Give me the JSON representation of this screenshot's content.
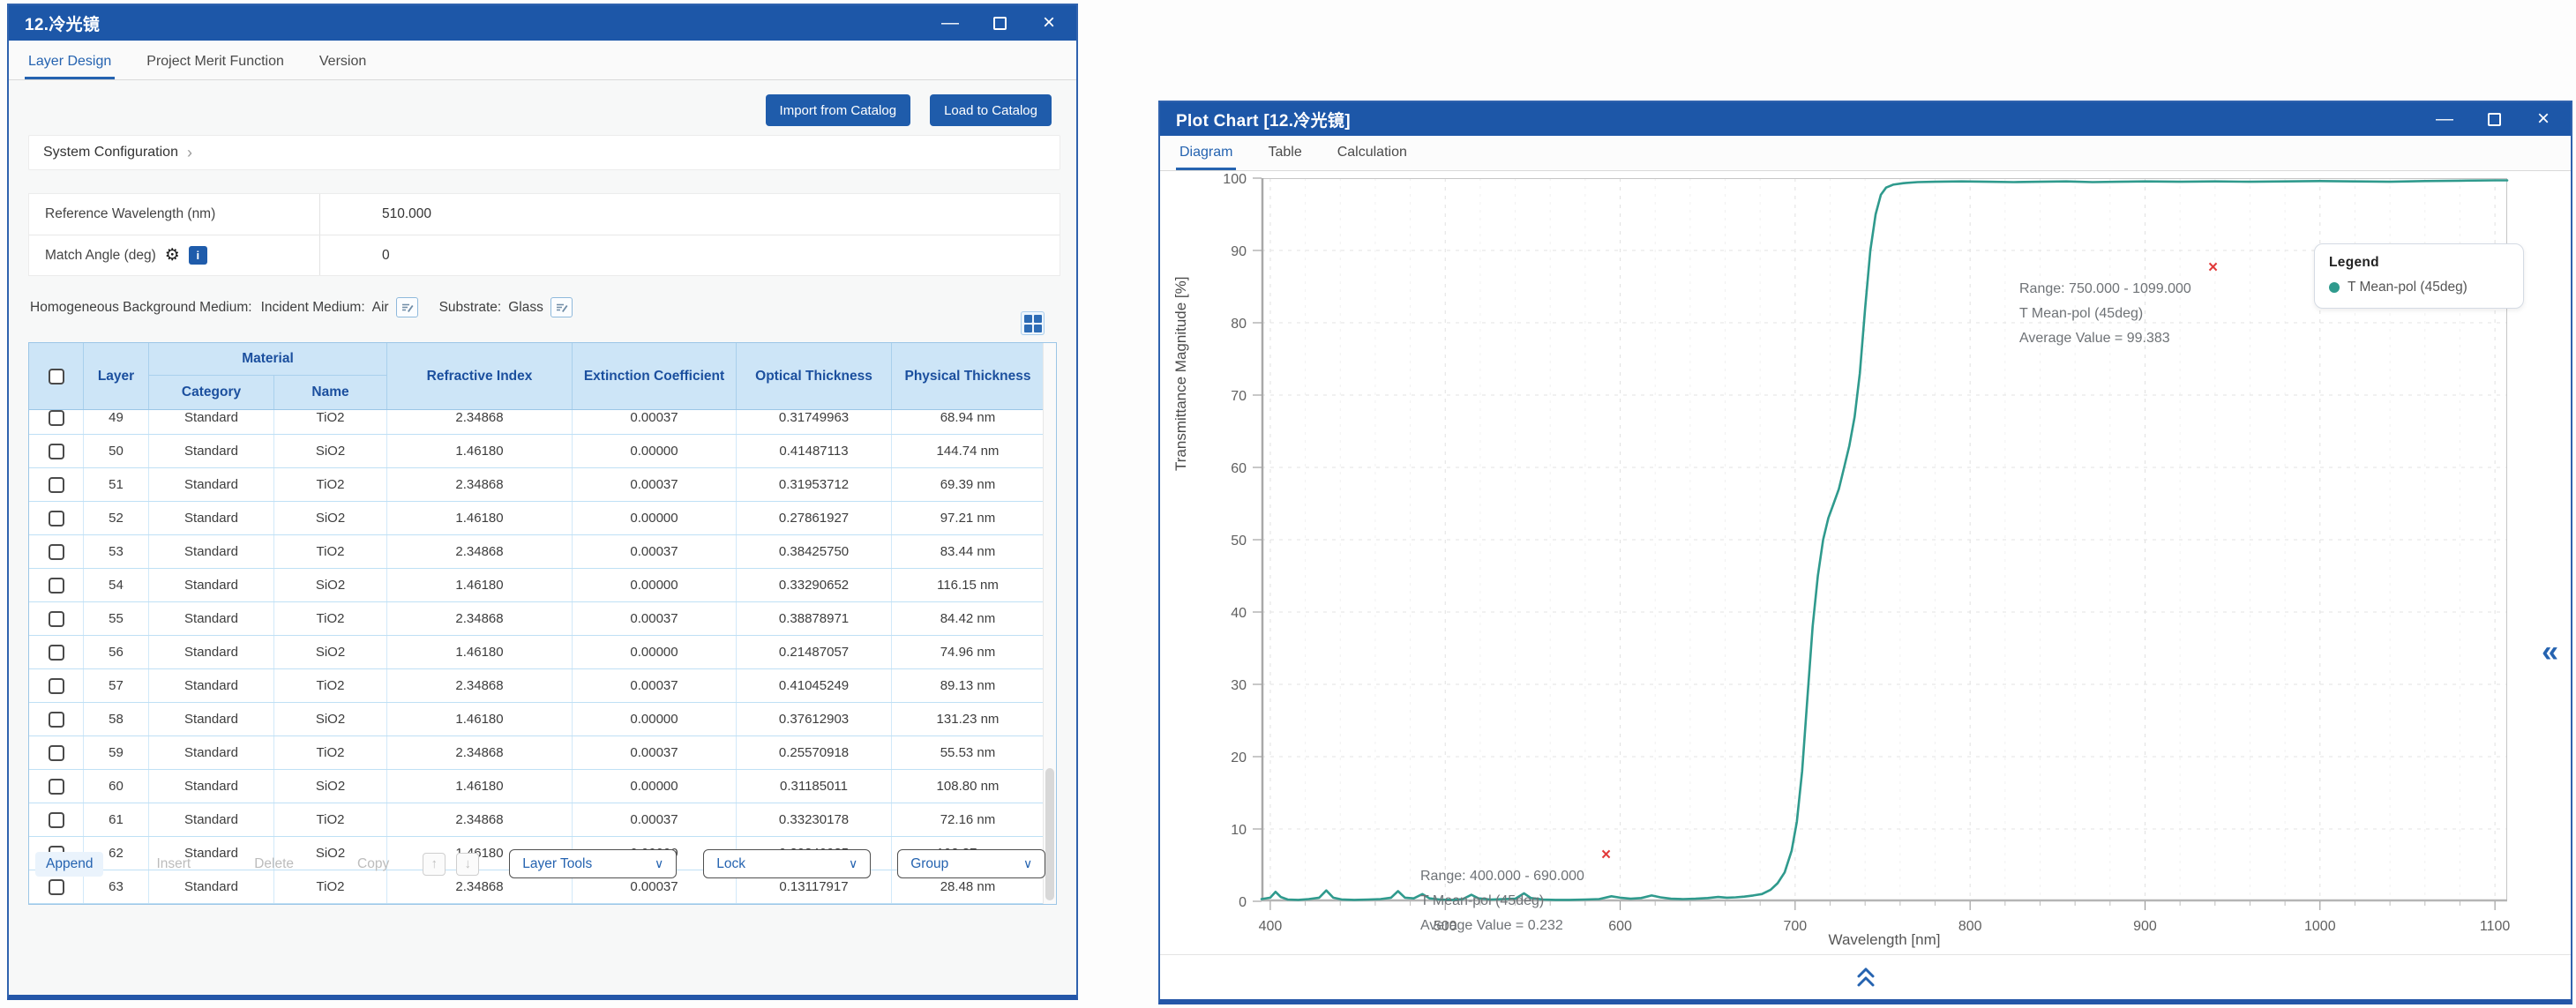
{
  "colors": {
    "titlebar_blue": "#1d57a8",
    "accent_blue": "#1f5cab",
    "active_tab_blue": "#2563b0",
    "curve_teal": "#2f9a8d",
    "close_red": "#e23b3b",
    "table_header_bg": "#cde5f7",
    "table_header_text": "#1b4f9e"
  },
  "left_window": {
    "title": "12.冷光镜",
    "tabs": {
      "layer_design": "Layer Design",
      "project_merit_function": "Project Merit Function",
      "version": "Version"
    },
    "buttons": {
      "import_from_catalog": "Import from Catalog",
      "load_to_catalog": "Load to Catalog"
    },
    "system_configuration_label": "System Configuration",
    "form": {
      "reference_wavelength_label": "Reference Wavelength (nm)",
      "reference_wavelength_value": "510.000",
      "match_angle_label": "Match Angle (deg)",
      "match_angle_value": "0"
    },
    "background_medium": {
      "label": "Homogeneous Background Medium:",
      "incident_label": "Incident Medium:",
      "incident_value": "Air",
      "substrate_label": "Substrate:",
      "substrate_value": "Glass"
    },
    "table": {
      "headers": {
        "layer": "Layer",
        "material": "Material",
        "category": "Category",
        "name": "Name",
        "refractive_index": "Refractive Index",
        "extinction_coefficient": "Extinction Coefficient",
        "optical_thickness": "Optical Thickness",
        "physical_thickness": "Physical Thickness"
      },
      "rows": [
        {
          "layer": "49",
          "category": "Standard",
          "name": "TiO2",
          "refractive_index": "2.34868",
          "extinction_coefficient": "0.00037",
          "optical_thickness": "0.31749963",
          "physical_thickness": "68.94 nm"
        },
        {
          "layer": "50",
          "category": "Standard",
          "name": "SiO2",
          "refractive_index": "1.46180",
          "extinction_coefficient": "0.00000",
          "optical_thickness": "0.41487113",
          "physical_thickness": "144.74 nm"
        },
        {
          "layer": "51",
          "category": "Standard",
          "name": "TiO2",
          "refractive_index": "2.34868",
          "extinction_coefficient": "0.00037",
          "optical_thickness": "0.31953712",
          "physical_thickness": "69.39 nm"
        },
        {
          "layer": "52",
          "category": "Standard",
          "name": "SiO2",
          "refractive_index": "1.46180",
          "extinction_coefficient": "0.00000",
          "optical_thickness": "0.27861927",
          "physical_thickness": "97.21 nm"
        },
        {
          "layer": "53",
          "category": "Standard",
          "name": "TiO2",
          "refractive_index": "2.34868",
          "extinction_coefficient": "0.00037",
          "optical_thickness": "0.38425750",
          "physical_thickness": "83.44 nm"
        },
        {
          "layer": "54",
          "category": "Standard",
          "name": "SiO2",
          "refractive_index": "1.46180",
          "extinction_coefficient": "0.00000",
          "optical_thickness": "0.33290652",
          "physical_thickness": "116.15 nm"
        },
        {
          "layer": "55",
          "category": "Standard",
          "name": "TiO2",
          "refractive_index": "2.34868",
          "extinction_coefficient": "0.00037",
          "optical_thickness": "0.38878971",
          "physical_thickness": "84.42 nm"
        },
        {
          "layer": "56",
          "category": "Standard",
          "name": "SiO2",
          "refractive_index": "1.46180",
          "extinction_coefficient": "0.00000",
          "optical_thickness": "0.21487057",
          "physical_thickness": "74.96 nm"
        },
        {
          "layer": "57",
          "category": "Standard",
          "name": "TiO2",
          "refractive_index": "2.34868",
          "extinction_coefficient": "0.00037",
          "optical_thickness": "0.41045249",
          "physical_thickness": "89.13 nm"
        },
        {
          "layer": "58",
          "category": "Standard",
          "name": "SiO2",
          "refractive_index": "1.46180",
          "extinction_coefficient": "0.00000",
          "optical_thickness": "0.37612903",
          "physical_thickness": "131.23 nm"
        },
        {
          "layer": "59",
          "category": "Standard",
          "name": "TiO2",
          "refractive_index": "2.34868",
          "extinction_coefficient": "0.00037",
          "optical_thickness": "0.25570918",
          "physical_thickness": "55.53 nm"
        },
        {
          "layer": "60",
          "category": "Standard",
          "name": "SiO2",
          "refractive_index": "1.46180",
          "extinction_coefficient": "0.00000",
          "optical_thickness": "0.31185011",
          "physical_thickness": "108.80 nm"
        },
        {
          "layer": "61",
          "category": "Standard",
          "name": "TiO2",
          "refractive_index": "2.34868",
          "extinction_coefficient": "0.00037",
          "optical_thickness": "0.33230178",
          "physical_thickness": "72.16 nm"
        },
        {
          "layer": "62",
          "category": "Standard",
          "name": "SiO2",
          "refractive_index": "1.46180",
          "extinction_coefficient": "0.00000",
          "optical_thickness": "0.29340985",
          "physical_thickness": "102.37 nm"
        },
        {
          "layer": "63",
          "category": "Standard",
          "name": "TiO2",
          "refractive_index": "2.34868",
          "extinction_coefficient": "0.00037",
          "optical_thickness": "0.13117917",
          "physical_thickness": "28.48 nm"
        }
      ]
    },
    "toolbar": {
      "append": "Append",
      "insert": "Insert",
      "delete": "Delete",
      "copy": "Copy",
      "layer_tools": "Layer Tools",
      "lock": "Lock",
      "group": "Group"
    }
  },
  "right_window": {
    "title": "Plot Chart [12.冷光镜]",
    "tabs": {
      "diagram": "Diagram",
      "table": "Table",
      "calculation": "Calculation"
    },
    "legend": {
      "title": "Legend",
      "series_label": "T Mean-pol (45deg)"
    },
    "annotations": [
      {
        "line1": "Range: 750.000 - 1099.000",
        "line2": "T Mean-pol (45deg)",
        "line3": "Average Value = 99.383"
      },
      {
        "line1": "Range: 400.000 - 690.000",
        "line2": "T Mean-pol (45deg)",
        "line3": "Average Value = 0.232"
      }
    ],
    "chart_data": {
      "type": "line",
      "xlabel": "Wavelength [nm]",
      "ylabel": "Transmittance Magnitude [%]",
      "xlim": [
        395,
        1107
      ],
      "ylim": [
        0,
        100
      ],
      "x_ticks": [
        400,
        500,
        600,
        700,
        800,
        900,
        1000,
        1100
      ],
      "y_ticks": [
        0,
        10,
        20,
        30,
        40,
        50,
        60,
        70,
        80,
        90,
        100
      ],
      "grid": "dashed",
      "legend_position": "top-right",
      "series": [
        {
          "name": "T Mean-pol (45deg)",
          "color": "#2f9a8d",
          "points": [
            [
              395,
              0.3
            ],
            [
              400,
              0.5
            ],
            [
              403,
              1.3
            ],
            [
              406,
              0.6
            ],
            [
              410,
              0.25
            ],
            [
              416,
              0.2
            ],
            [
              422,
              0.3
            ],
            [
              428,
              0.5
            ],
            [
              432,
              1.5
            ],
            [
              436,
              0.5
            ],
            [
              441,
              0.25
            ],
            [
              448,
              0.2
            ],
            [
              456,
              0.25
            ],
            [
              463,
              0.3
            ],
            [
              469,
              0.5
            ],
            [
              473,
              1.4
            ],
            [
              477,
              0.5
            ],
            [
              482,
              0.4
            ],
            [
              487,
              1.0
            ],
            [
              491,
              0.4
            ],
            [
              497,
              0.25
            ],
            [
              504,
              0.2
            ],
            [
              510,
              0.3
            ],
            [
              515,
              0.9
            ],
            [
              519,
              0.4
            ],
            [
              526,
              0.25
            ],
            [
              533,
              0.3
            ],
            [
              540,
              0.35
            ],
            [
              545,
              1.1
            ],
            [
              549,
              0.45
            ],
            [
              556,
              0.25
            ],
            [
              563,
              0.2
            ],
            [
              571,
              0.2
            ],
            [
              580,
              0.25
            ],
            [
              588,
              0.3
            ],
            [
              595,
              0.7
            ],
            [
              600,
              0.5
            ],
            [
              606,
              0.35
            ],
            [
              612,
              0.45
            ],
            [
              618,
              0.8
            ],
            [
              623,
              0.55
            ],
            [
              629,
              0.35
            ],
            [
              636,
              0.3
            ],
            [
              643,
              0.35
            ],
            [
              650,
              0.45
            ],
            [
              656,
              0.6
            ],
            [
              661,
              0.5
            ],
            [
              666,
              0.55
            ],
            [
              671,
              0.65
            ],
            [
              676,
              0.8
            ],
            [
              681,
              1.0
            ],
            [
              686,
              1.6
            ],
            [
              690,
              2.5
            ],
            [
              694,
              4
            ],
            [
              698,
              7
            ],
            [
              701,
              11
            ],
            [
              704,
              18
            ],
            [
              707,
              28
            ],
            [
              710,
              38
            ],
            [
              713,
              45
            ],
            [
              716,
              50
            ],
            [
              719,
              53
            ],
            [
              722,
              55
            ],
            [
              725,
              57
            ],
            [
              728,
              60
            ],
            [
              731,
              63
            ],
            [
              734,
              67
            ],
            [
              737,
              73
            ],
            [
              740,
              82
            ],
            [
              743,
              90
            ],
            [
              746,
              95
            ],
            [
              749,
              97.7
            ],
            [
              752,
              98.7
            ],
            [
              756,
              99.1
            ],
            [
              762,
              99.3
            ],
            [
              770,
              99.45
            ],
            [
              780,
              99.5
            ],
            [
              795,
              99.55
            ],
            [
              810,
              99.5
            ],
            [
              825,
              99.45
            ],
            [
              840,
              99.5
            ],
            [
              855,
              99.55
            ],
            [
              870,
              99.45
            ],
            [
              885,
              99.5
            ],
            [
              900,
              99.55
            ],
            [
              920,
              99.5
            ],
            [
              940,
              99.55
            ],
            [
              960,
              99.5
            ],
            [
              980,
              99.55
            ],
            [
              1000,
              99.6
            ],
            [
              1020,
              99.55
            ],
            [
              1040,
              99.5
            ],
            [
              1060,
              99.6
            ],
            [
              1080,
              99.65
            ],
            [
              1100,
              99.7
            ],
            [
              1107,
              99.7
            ]
          ]
        }
      ]
    }
  }
}
